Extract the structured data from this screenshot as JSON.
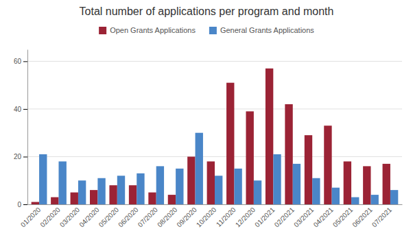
{
  "chart_data": {
    "type": "bar",
    "title": "Total number of applications per program and month",
    "categories": [
      "01/2020",
      "02/2020",
      "03/2020",
      "04/2020",
      "05/2020",
      "06/2020",
      "07/2020",
      "08/2020",
      "09/2020",
      "10/2020",
      "11/2020",
      "12/2020",
      "01/2021",
      "02/2021",
      "03/2021",
      "04/2021",
      "05/2021",
      "06/2021",
      "07/2021"
    ],
    "series": [
      {
        "name": "Open Grants Applications",
        "color": "#9B2335",
        "values": [
          1,
          3,
          5,
          6,
          8,
          8,
          5,
          4,
          20,
          18,
          51,
          39,
          57,
          42,
          29,
          33,
          18,
          16,
          17
        ]
      },
      {
        "name": "General Grants Applications",
        "color": "#4A86C8",
        "values": [
          21,
          18,
          10,
          11,
          12,
          13,
          16,
          15,
          30,
          12,
          15,
          10,
          21,
          17,
          11,
          7,
          3,
          4,
          6
        ]
      }
    ],
    "ylim": [
      0,
      65
    ],
    "yticks": [
      0,
      20,
      40,
      60
    ],
    "grid": true,
    "legend": "top"
  }
}
